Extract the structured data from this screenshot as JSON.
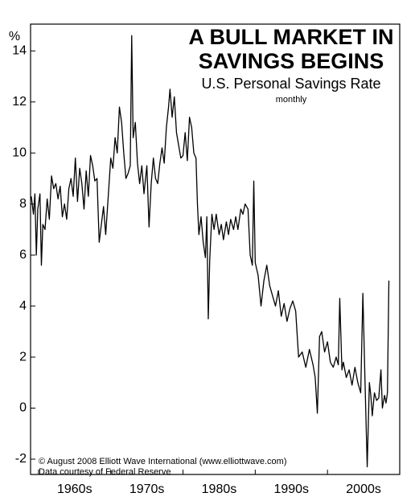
{
  "chart_data": {
    "type": "line",
    "title": [
      "A BULL MARKET IN",
      "SAVINGS BEGINS"
    ],
    "subtitle": "U.S. Personal Savings Rate",
    "frequency": "monthly",
    "y_label": "%",
    "annotations": [
      "© August 2008 Elliott Wave International (www.elliottwave.com)",
      "Data courtesy of Federal Reserve"
    ],
    "color": "#000000",
    "xlim": [
      1958.9,
      2010
    ],
    "ylim": [
      -2.6,
      15.05
    ],
    "yticks": [
      -2,
      0,
      2,
      4,
      6,
      8,
      10,
      12,
      14
    ],
    "xticks": [
      {
        "value": 1960,
        "label": "1960s"
      },
      {
        "value": 1970,
        "label": "1970s"
      },
      {
        "value": 1980,
        "label": "1980s"
      },
      {
        "value": 1990,
        "label": "1990s"
      },
      {
        "value": 2000,
        "label": "2000s"
      }
    ],
    "x": [
      1959.0,
      1959.3,
      1959.5,
      1959.7,
      1959.9,
      1960.2,
      1960.4,
      1960.6,
      1960.9,
      1961.2,
      1961.5,
      1961.8,
      1962.1,
      1962.4,
      1962.7,
      1963.0,
      1963.3,
      1963.6,
      1963.9,
      1964.2,
      1964.5,
      1964.8,
      1965.1,
      1965.4,
      1965.7,
      1966.0,
      1966.3,
      1966.6,
      1966.9,
      1967.2,
      1967.5,
      1967.8,
      1968.1,
      1968.4,
      1968.7,
      1969.0,
      1969.3,
      1969.7,
      1970.0,
      1970.3,
      1970.6,
      1970.9,
      1971.2,
      1971.5,
      1971.8,
      1972.1,
      1972.4,
      1972.7,
      1972.9,
      1973.1,
      1973.4,
      1973.7,
      1974.0,
      1974.3,
      1974.6,
      1975.0,
      1975.3,
      1975.6,
      1975.9,
      1976.2,
      1976.5,
      1976.8,
      1977.1,
      1977.4,
      1977.7,
      1978.0,
      1978.2,
      1978.5,
      1978.8,
      1979.1,
      1979.4,
      1979.7,
      1980.0,
      1980.3,
      1980.6,
      1980.9,
      1981.2,
      1981.5,
      1981.8,
      1982.0,
      1982.2,
      1982.5,
      1982.8,
      1983.1,
      1983.3,
      1983.5,
      1983.7,
      1984.0,
      1984.3,
      1984.6,
      1985.0,
      1985.3,
      1985.6,
      1986.0,
      1986.3,
      1986.6,
      1987.0,
      1987.3,
      1987.6,
      1988.0,
      1988.3,
      1988.6,
      1989.0,
      1989.3,
      1989.6,
      1989.8,
      1990.0,
      1990.4,
      1990.8,
      1991.2,
      1991.6,
      1992.0,
      1992.4,
      1992.8,
      1993.2,
      1993.6,
      1994.0,
      1994.4,
      1994.8,
      1995.2,
      1995.6,
      1996.0,
      1996.5,
      1997.0,
      1997.5,
      1998.0,
      1998.3,
      1998.6,
      1998.9,
      1999.2,
      1999.6,
      2000.0,
      2000.4,
      2000.8,
      2001.2,
      2001.5,
      2001.7,
      2002.0,
      2002.2,
      2002.6,
      2003.0,
      2003.4,
      2003.8,
      2004.2,
      2004.6,
      2004.9,
      2005.2,
      2005.5,
      2005.8,
      2006.0,
      2006.2,
      2006.5,
      2006.8,
      2007.1,
      2007.4,
      2007.6,
      2007.9,
      2008.1,
      2008.3,
      2008.5
    ],
    "values": [
      8.3,
      7.6,
      8.4,
      6.0,
      7.8,
      8.4,
      5.6,
      7.2,
      7.0,
      8.2,
      7.4,
      9.1,
      8.6,
      8.8,
      8.2,
      8.7,
      7.5,
      8.0,
      7.4,
      8.6,
      9.0,
      8.3,
      9.8,
      8.1,
      9.4,
      8.8,
      7.8,
      9.3,
      8.3,
      9.9,
      9.5,
      8.9,
      9.0,
      6.5,
      7.2,
      7.9,
      6.8,
      8.5,
      9.8,
      9.4,
      10.6,
      10.0,
      11.8,
      11.2,
      10.0,
      9.0,
      9.2,
      9.5,
      14.6,
      10.6,
      11.2,
      9.6,
      8.8,
      9.5,
      8.4,
      9.5,
      7.1,
      8.8,
      9.8,
      9.0,
      8.8,
      9.6,
      10.2,
      9.6,
      11.0,
      11.8,
      12.5,
      11.4,
      12.2,
      10.8,
      10.3,
      9.8,
      9.9,
      10.8,
      9.7,
      11.4,
      11.0,
      10.0,
      9.8,
      8.0,
      6.8,
      7.5,
      6.5,
      5.9,
      7.5,
      3.5,
      5.8,
      7.6,
      7.0,
      7.6,
      6.8,
      7.2,
      6.6,
      7.3,
      6.8,
      7.4,
      7.0,
      7.5,
      7.0,
      7.8,
      7.6,
      8.0,
      7.8,
      6.0,
      5.6,
      8.9,
      5.7,
      5.2,
      4.0,
      5.0,
      5.6,
      4.8,
      4.4,
      4.0,
      4.6,
      3.6,
      4.1,
      3.4,
      3.9,
      4.2,
      3.8,
      2.0,
      2.2,
      1.6,
      2.3,
      1.7,
      1.2,
      -0.2,
      2.8,
      3.0,
      2.2,
      2.6,
      1.8,
      1.6,
      2.0,
      1.7,
      4.3,
      1.5,
      1.8,
      1.2,
      1.5,
      0.9,
      1.6,
      1.0,
      0.6,
      4.5,
      1.0,
      -2.3,
      1.0,
      0.5,
      -0.3,
      0.6,
      0.3,
      0.4,
      1.5,
      0.0,
      0.5,
      0.2,
      0.6,
      5.0
    ]
  }
}
